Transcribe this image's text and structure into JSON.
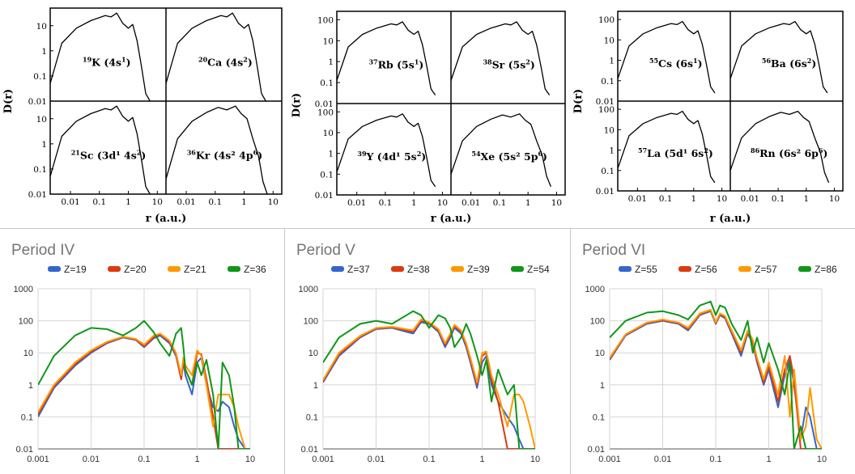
{
  "top_panels": [
    {
      "ylabel": "D(r)",
      "xlabel": "r (a.u.)",
      "ytick_labels": [
        "10",
        "1",
        "0.1",
        "0.01"
      ],
      "xtick_labels": [
        "0.01",
        "0.1",
        "1",
        "10"
      ],
      "subplots": [
        {
          "mass": "19",
          "symbol": "K",
          "config": "(4s",
          "sup": "1",
          "tail": ")"
        },
        {
          "mass": "20",
          "symbol": "Ca",
          "config": "(4s",
          "sup": "2",
          "tail": ")"
        },
        {
          "mass": "21",
          "symbol": "Sc",
          "config": "(3d¹ 4s",
          "sup": "2",
          "tail": ")"
        },
        {
          "mass": "36",
          "symbol": "Kr",
          "config": "(4s² 4p",
          "sup": "6",
          "tail": ")"
        }
      ]
    },
    {
      "ylabel": "D(r)",
      "xlabel": "r (a.u.)",
      "ytick_labels": [
        "100",
        "10",
        "1",
        "0.1",
        "0.01"
      ],
      "xtick_labels": [
        "0.01",
        "0.1",
        "1",
        "10"
      ],
      "subplots": [
        {
          "mass": "37",
          "symbol": "Rb",
          "config": "(5s",
          "sup": "1",
          "tail": ")"
        },
        {
          "mass": "38",
          "symbol": "Sr",
          "config": "(5s",
          "sup": "2",
          "tail": ")"
        },
        {
          "mass": "39",
          "symbol": "Y",
          "config": "(4d¹ 5s",
          "sup": "2",
          "tail": ")"
        },
        {
          "mass": "54",
          "symbol": "Xe",
          "config": "(5s² 5p",
          "sup": "6",
          "tail": ")"
        }
      ]
    },
    {
      "ylabel": "D(r)",
      "xlabel": "r (a.u.)",
      "ytick_labels": [
        "100",
        "10",
        "1",
        "0.1",
        "0.01"
      ],
      "xtick_labels": [
        "0.01",
        "0.1",
        "1",
        "10"
      ],
      "subplots": [
        {
          "mass": "55",
          "symbol": "Cs",
          "config": "(6s",
          "sup": "1",
          "tail": ")"
        },
        {
          "mass": "56",
          "symbol": "Ba",
          "config": "(6s",
          "sup": "2",
          "tail": ")"
        },
        {
          "mass": "57",
          "symbol": "La",
          "config": "(5d¹ 6s",
          "sup": "2",
          "tail": ")"
        },
        {
          "mass": "86",
          "symbol": "Rn",
          "config": "(6s² 6p",
          "sup": "6",
          "tail": ")"
        }
      ]
    }
  ],
  "chart_data": [
    {
      "type": "line",
      "title": "Period IV",
      "xlabel": "",
      "ylabel": "",
      "x_scale": "log",
      "y_scale": "log",
      "xlim": [
        0.001,
        10
      ],
      "ylim": [
        0.01,
        1000
      ],
      "x_tick_labels": [
        "0.001",
        "0.01",
        "0.1",
        "1",
        "10"
      ],
      "y_tick_labels": [
        "1000",
        "100",
        "10",
        "1",
        "0.1",
        "0.01"
      ],
      "grid": true,
      "legend": "top",
      "x": [
        0.001,
        0.002,
        0.005,
        0.01,
        0.02,
        0.04,
        0.07,
        0.1,
        0.15,
        0.2,
        0.3,
        0.4,
        0.5,
        0.55,
        0.6,
        0.8,
        1,
        1.2,
        1.5,
        2,
        2.5,
        3,
        4,
        5,
        6,
        8,
        10
      ],
      "series": [
        {
          "name": "Z=19",
          "color": "#3366cc",
          "values": [
            0.1,
            0.8,
            4,
            10,
            20,
            30,
            25,
            15,
            28,
            35,
            20,
            8,
            1.5,
            5,
            2,
            0.5,
            5,
            7,
            1,
            0.2,
            0.15,
            0.3,
            0.2,
            0.05,
            0.02,
            0.01,
            0.01
          ]
        },
        {
          "name": "Z=20",
          "color": "#dc3912",
          "values": [
            0.12,
            0.9,
            4.5,
            11,
            21,
            31,
            26,
            16,
            30,
            38,
            22,
            9,
            1.5,
            6,
            3,
            1,
            10,
            9,
            1.5,
            0.1,
            0.01,
            0.01,
            0.01,
            0.01,
            0.01,
            0.01,
            0.01
          ]
        },
        {
          "name": "Z=21",
          "color": "#ff9900",
          "values": [
            0.14,
            1.0,
            5,
            12,
            22,
            32,
            27,
            18,
            34,
            40,
            24,
            10,
            2,
            7,
            4,
            2,
            12,
            8,
            1,
            0.05,
            0.5,
            0.5,
            0.5,
            0.2,
            0.05,
            0.01,
            0.01
          ]
        },
        {
          "name": "Z=36",
          "color": "#109618",
          "values": [
            1.0,
            8,
            35,
            60,
            55,
            35,
            60,
            100,
            45,
            20,
            8,
            40,
            60,
            15,
            3,
            1,
            5,
            2,
            6,
            0.5,
            0.01,
            5,
            2,
            0.2,
            0.01,
            0.01,
            0.01
          ]
        }
      ]
    },
    {
      "type": "line",
      "title": "Period V",
      "xlabel": "",
      "ylabel": "",
      "x_scale": "log",
      "y_scale": "log",
      "xlim": [
        0.001,
        10
      ],
      "ylim": [
        0.01,
        1000
      ],
      "x_tick_labels": [
        "0.001",
        "0.01",
        "0.1",
        "1",
        "10"
      ],
      "y_tick_labels": [
        "1000",
        "100",
        "10",
        "1",
        "0.1",
        "0.01"
      ],
      "grid": true,
      "legend": "top",
      "x": [
        0.001,
        0.002,
        0.005,
        0.01,
        0.02,
        0.05,
        0.07,
        0.1,
        0.15,
        0.2,
        0.25,
        0.3,
        0.4,
        0.5,
        0.6,
        0.8,
        1,
        1.2,
        1.5,
        2,
        3,
        4,
        5,
        6,
        8,
        10
      ],
      "series": [
        {
          "name": "Z=37",
          "color": "#3366cc",
          "values": [
            1.2,
            8,
            30,
            55,
            60,
            40,
            90,
            80,
            45,
            15,
            30,
            60,
            40,
            15,
            5,
            0.8,
            5,
            8,
            1,
            0.3,
            0.1,
            0.05,
            0.02,
            0.01,
            0.01,
            0.01
          ]
        },
        {
          "name": "Z=38",
          "color": "#dc3912",
          "values": [
            1.3,
            9,
            32,
            58,
            62,
            45,
            100,
            85,
            50,
            18,
            35,
            70,
            45,
            18,
            6,
            1,
            8,
            10,
            1.5,
            0.3,
            0.01,
            0.01,
            0.01,
            0.01,
            0.01,
            0.01
          ]
        },
        {
          "name": "Z=39",
          "color": "#ff9900",
          "values": [
            1.4,
            10,
            34,
            60,
            65,
            50,
            110,
            90,
            55,
            20,
            40,
            75,
            50,
            20,
            7,
            1.2,
            10,
            11,
            2,
            0.5,
            0.05,
            0.5,
            0.5,
            0.3,
            0.05,
            0.01
          ]
        },
        {
          "name": "Z=54",
          "color": "#109618",
          "values": [
            5,
            30,
            80,
            100,
            80,
            200,
            150,
            60,
            150,
            120,
            60,
            15,
            30,
            80,
            40,
            8,
            2,
            6,
            0.3,
            3,
            0.5,
            1,
            0.01,
            0.01,
            0.01,
            0.01
          ]
        }
      ]
    },
    {
      "type": "line",
      "title": "Period VI",
      "xlabel": "",
      "ylabel": "",
      "x_scale": "log",
      "y_scale": "log",
      "xlim": [
        0.001,
        10
      ],
      "ylim": [
        0.01,
        1000
      ],
      "x_tick_labels": [
        "0.001",
        "0.01",
        "0.1",
        "1",
        "10"
      ],
      "y_tick_labels": [
        "1000",
        "100",
        "10",
        "1",
        "0.1",
        "0.01"
      ],
      "grid": true,
      "legend": "top",
      "x": [
        0.001,
        0.002,
        0.005,
        0.01,
        0.02,
        0.03,
        0.05,
        0.08,
        0.1,
        0.12,
        0.15,
        0.2,
        0.3,
        0.4,
        0.5,
        0.6,
        0.8,
        1,
        1.5,
        2,
        2.5,
        3,
        4,
        5,
        6,
        8,
        10
      ],
      "series": [
        {
          "name": "Z=55",
          "color": "#3366cc",
          "values": [
            6,
            35,
            80,
            100,
            80,
            50,
            150,
            200,
            80,
            150,
            120,
            40,
            8,
            40,
            20,
            5,
            1,
            3,
            0.2,
            2,
            6,
            1,
            0.02,
            0.2,
            0.1,
            0.01,
            0.01
          ]
        },
        {
          "name": "Z=56",
          "color": "#dc3912",
          "values": [
            6.5,
            37,
            85,
            105,
            85,
            55,
            160,
            210,
            85,
            160,
            130,
            45,
            10,
            45,
            22,
            6,
            1.2,
            4,
            0.3,
            3,
            8,
            1.5,
            0.01,
            0.01,
            0.01,
            0.01,
            0.01
          ]
        },
        {
          "name": "Z=57",
          "color": "#ff9900",
          "values": [
            7,
            38,
            88,
            110,
            88,
            60,
            170,
            220,
            90,
            170,
            140,
            50,
            12,
            50,
            25,
            7,
            1.5,
            5,
            0.5,
            8,
            0.1,
            3,
            0.02,
            0.05,
            0.8,
            0.02,
            0.01
          ]
        },
        {
          "name": "Z=86",
          "color": "#109618",
          "values": [
            30,
            100,
            180,
            200,
            150,
            110,
            300,
            400,
            150,
            300,
            260,
            80,
            25,
            100,
            10,
            30,
            5,
            20,
            3,
            0.5,
            5,
            0.01,
            0.05,
            0.01,
            0.01,
            0.01,
            0.01
          ]
        }
      ]
    }
  ]
}
